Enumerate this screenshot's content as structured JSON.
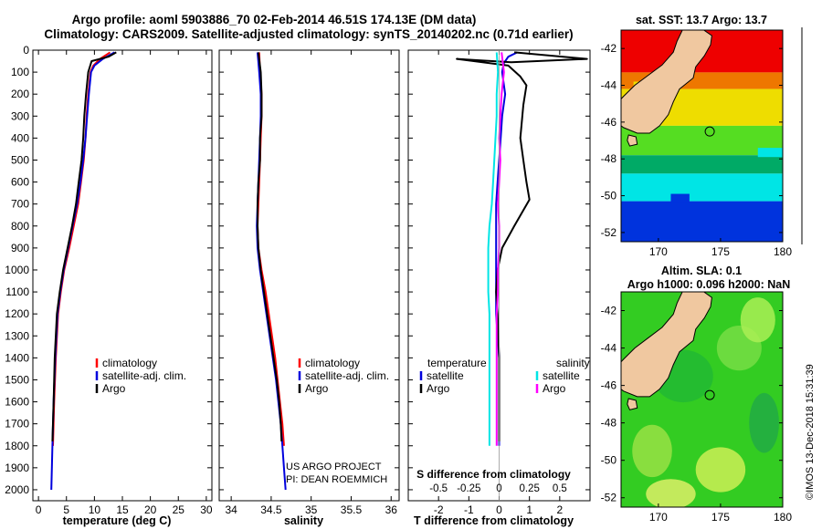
{
  "header": {
    "line1": "Argo profile: aoml 5903886_70 02-Feb-2014 46.51S 174.13E (DM data)",
    "line2": "Climatology: CARS2009. Satellite-adjusted climatology: synTS_20140202.nc (0.71d earlier)"
  },
  "credits": {
    "project": "US ARGO PROJECT",
    "pi": "PI: DEAN ROEMMICH",
    "stamp": "©IMOS 13-Dec-2018 15:31:39"
  },
  "colors": {
    "climatology": "#ff0000",
    "satellite": "#0000dd",
    "argo": "#000000",
    "s_satellite": "#00e5e5",
    "s_argo": "#ff00ff"
  },
  "chart_data": [
    {
      "type": "line",
      "id": "temperature",
      "xlabel": "temperature (deg C)",
      "xlim": [
        -1,
        31
      ],
      "xticks": [
        0,
        5,
        10,
        15,
        20,
        25,
        30
      ],
      "xtick_labels": [
        "0",
        "5",
        "10",
        "15",
        "20",
        "25",
        "30"
      ],
      "ylim": [
        2050,
        0
      ],
      "yticks": [
        0,
        100,
        200,
        300,
        400,
        500,
        600,
        700,
        800,
        900,
        1000,
        1100,
        1200,
        1300,
        1400,
        1500,
        1600,
        1700,
        1800,
        1900,
        2000
      ],
      "legend": [
        "climatology",
        "satellite-adj. clim.",
        "Argo"
      ],
      "series": [
        {
          "name": "climatology",
          "color": "#ff0000",
          "points": [
            [
              12.8,
              10
            ],
            [
              11,
              40
            ],
            [
              9.8,
              70
            ],
            [
              9.3,
              100
            ],
            [
              8.9,
              200
            ],
            [
              8.6,
              300
            ],
            [
              8.4,
              400
            ],
            [
              8.1,
              500
            ],
            [
              7.6,
              600
            ],
            [
              7.1,
              700
            ],
            [
              6.3,
              800
            ],
            [
              5.5,
              900
            ],
            [
              4.6,
              1000
            ],
            [
              4.0,
              1100
            ],
            [
              3.5,
              1200
            ],
            [
              3.1,
              1400
            ],
            [
              2.8,
              1600
            ],
            [
              2.6,
              1800
            ]
          ]
        },
        {
          "name": "satellite-adj. clim.",
          "color": "#0000dd",
          "points": [
            [
              13.6,
              10
            ],
            [
              11.5,
              40
            ],
            [
              10,
              70
            ],
            [
              9.4,
              100
            ],
            [
              9.0,
              200
            ],
            [
              8.7,
              300
            ],
            [
              8.4,
              400
            ],
            [
              8.0,
              500
            ],
            [
              7.5,
              600
            ],
            [
              6.9,
              700
            ],
            [
              6.1,
              800
            ],
            [
              5.3,
              900
            ],
            [
              4.5,
              1000
            ],
            [
              3.9,
              1100
            ],
            [
              3.4,
              1200
            ],
            [
              3.0,
              1400
            ],
            [
              2.7,
              1600
            ],
            [
              2.5,
              1800
            ],
            [
              2.3,
              2000
            ]
          ]
        },
        {
          "name": "Argo",
          "color": "#000000",
          "points": [
            [
              13.9,
              10
            ],
            [
              12.5,
              30
            ],
            [
              9.5,
              50
            ],
            [
              8.9,
              100
            ],
            [
              8.5,
              200
            ],
            [
              8.2,
              300
            ],
            [
              8.0,
              400
            ],
            [
              7.7,
              500
            ],
            [
              7.2,
              600
            ],
            [
              6.7,
              700
            ],
            [
              6.0,
              800
            ],
            [
              5.2,
              900
            ],
            [
              4.4,
              1000
            ],
            [
              3.8,
              1100
            ],
            [
              3.3,
              1200
            ],
            [
              2.9,
              1400
            ],
            [
              2.7,
              1600
            ],
            [
              2.5,
              1780
            ]
          ]
        }
      ]
    },
    {
      "type": "line",
      "id": "salinity",
      "xlabel": "salinity",
      "xlim": [
        33.85,
        36.1
      ],
      "xticks": [
        34,
        34.5,
        35,
        35.5,
        36
      ],
      "xtick_labels": [
        "34",
        "34.5",
        "35",
        "35.5",
        "36"
      ],
      "ylim": [
        2050,
        0
      ],
      "legend": [
        "climatology",
        "satellite-adj. clim.",
        "Argo"
      ],
      "series": [
        {
          "name": "climatology",
          "color": "#ff0000",
          "points": [
            [
              34.35,
              10
            ],
            [
              34.36,
              100
            ],
            [
              34.38,
              200
            ],
            [
              34.38,
              300
            ],
            [
              34.37,
              400
            ],
            [
              34.36,
              500
            ],
            [
              34.35,
              600
            ],
            [
              34.34,
              700
            ],
            [
              34.33,
              800
            ],
            [
              34.34,
              900
            ],
            [
              34.38,
              1000
            ],
            [
              34.43,
              1100
            ],
            [
              34.47,
              1200
            ],
            [
              34.51,
              1300
            ],
            [
              34.55,
              1400
            ],
            [
              34.58,
              1500
            ],
            [
              34.61,
              1600
            ],
            [
              34.64,
              1700
            ],
            [
              34.66,
              1800
            ]
          ]
        },
        {
          "name": "satellite-adj. clim.",
          "color": "#0000dd",
          "points": [
            [
              34.33,
              10
            ],
            [
              34.35,
              100
            ],
            [
              34.37,
              200
            ],
            [
              34.37,
              300
            ],
            [
              34.36,
              400
            ],
            [
              34.35,
              500
            ],
            [
              34.34,
              600
            ],
            [
              34.33,
              700
            ],
            [
              34.32,
              800
            ],
            [
              34.33,
              900
            ],
            [
              34.36,
              1000
            ],
            [
              34.4,
              1100
            ],
            [
              34.44,
              1200
            ],
            [
              34.48,
              1300
            ],
            [
              34.52,
              1400
            ],
            [
              34.56,
              1500
            ],
            [
              34.59,
              1600
            ],
            [
              34.62,
              1700
            ],
            [
              34.64,
              1800
            ],
            [
              34.66,
              1900
            ],
            [
              34.68,
              2000
            ]
          ]
        },
        {
          "name": "Argo",
          "color": "#000000",
          "points": [
            [
              34.34,
              10
            ],
            [
              34.37,
              100
            ],
            [
              34.38,
              200
            ],
            [
              34.38,
              300
            ],
            [
              34.36,
              400
            ],
            [
              34.36,
              500
            ],
            [
              34.34,
              600
            ],
            [
              34.33,
              700
            ],
            [
              34.33,
              800
            ],
            [
              34.34,
              900
            ],
            [
              34.37,
              1000
            ],
            [
              34.41,
              1100
            ],
            [
              34.45,
              1200
            ],
            [
              34.49,
              1300
            ],
            [
              34.53,
              1400
            ],
            [
              34.57,
              1500
            ],
            [
              34.6,
              1600
            ],
            [
              34.62,
              1700
            ],
            [
              34.63,
              1780
            ]
          ]
        }
      ]
    },
    {
      "type": "line",
      "id": "difference",
      "xlabel": "T difference from climatology",
      "xlim": [
        -3,
        3
      ],
      "xticks": [
        -2,
        -1,
        0,
        1,
        2
      ],
      "xtick_labels": [
        "-2",
        "-1",
        "0",
        "1",
        "2"
      ],
      "s_xlabel": "S difference from climatology",
      "s_xticks": [
        -0.5,
        -0.25,
        0,
        0.25,
        0.5
      ],
      "s_xtick_labels": [
        "-0.5",
        "-0.25",
        "0",
        "0.25",
        "0.5"
      ],
      "s_xlim": [
        -0.75,
        0.75
      ],
      "ylim": [
        2050,
        0
      ],
      "legend_t": {
        "title": "temperature",
        "items": [
          "satellite",
          "Argo"
        ]
      },
      "legend_s": {
        "title": "salinity",
        "items": [
          "satellite",
          "Argo"
        ]
      },
      "series": [
        {
          "name": "T satellite",
          "color": "#0000dd",
          "points": [
            [
              0.6,
              10
            ],
            [
              0.3,
              30
            ],
            [
              0.15,
              60
            ],
            [
              0.1,
              100
            ],
            [
              0.2,
              200
            ],
            [
              0.1,
              300
            ],
            [
              0.05,
              400
            ],
            [
              0,
              500
            ],
            [
              -0.05,
              600
            ],
            [
              -0.1,
              700
            ],
            [
              -0.1,
              800
            ],
            [
              -0.1,
              900
            ],
            [
              -0.1,
              1000
            ],
            [
              -0.1,
              1100
            ],
            [
              -0.1,
              1200
            ],
            [
              -0.05,
              1300
            ],
            [
              0,
              1400
            ],
            [
              0,
              1500
            ],
            [
              0,
              1600
            ],
            [
              0,
              1700
            ],
            [
              0,
              1800
            ]
          ]
        },
        {
          "name": "T Argo",
          "color": "#000000",
          "points": [
            [
              0.5,
              10
            ],
            [
              2.9,
              40
            ],
            [
              0.4,
              55
            ],
            [
              -1.4,
              40
            ],
            [
              0.3,
              70
            ],
            [
              0.7,
              120
            ],
            [
              0.9,
              160
            ],
            [
              0.8,
              250
            ],
            [
              0.7,
              400
            ],
            [
              0.8,
              500
            ],
            [
              0.9,
              600
            ],
            [
              1.0,
              680
            ],
            [
              0.5,
              800
            ],
            [
              0.1,
              900
            ],
            [
              -0.05,
              1000
            ],
            [
              -0.1,
              1100
            ],
            [
              -0.05,
              1200
            ],
            [
              0,
              1400
            ],
            [
              0,
              1600
            ],
            [
              0,
              1780
            ]
          ]
        },
        {
          "name": "S satellite",
          "color": "#00e5e5",
          "points": [
            [
              -0.02,
              10
            ],
            [
              -0.01,
              100
            ],
            [
              -0.02,
              200
            ],
            [
              -0.02,
              300
            ],
            [
              -0.03,
              400
            ],
            [
              -0.04,
              500
            ],
            [
              -0.05,
              600
            ],
            [
              -0.06,
              700
            ],
            [
              -0.08,
              800
            ],
            [
              -0.09,
              900
            ],
            [
              -0.09,
              1000
            ],
            [
              -0.09,
              1100
            ],
            [
              -0.08,
              1200
            ],
            [
              -0.08,
              1300
            ],
            [
              -0.08,
              1400
            ],
            [
              -0.08,
              1500
            ],
            [
              -0.08,
              1600
            ],
            [
              -0.08,
              1700
            ],
            [
              -0.08,
              1800
            ]
          ]
        },
        {
          "name": "S Argo",
          "color": "#ff00ff",
          "points": [
            [
              0.02,
              10
            ],
            [
              0.04,
              100
            ],
            [
              0.02,
              200
            ],
            [
              0.01,
              300
            ],
            [
              0,
              400
            ],
            [
              0.01,
              500
            ],
            [
              0.0,
              600
            ],
            [
              -0.01,
              700
            ],
            [
              0.0,
              800
            ],
            [
              0.0,
              900
            ],
            [
              -0.01,
              1000
            ],
            [
              -0.01,
              1100
            ],
            [
              -0.02,
              1200
            ],
            [
              -0.02,
              1300
            ],
            [
              -0.02,
              1400
            ],
            [
              -0.02,
              1500
            ],
            [
              -0.02,
              1600
            ],
            [
              -0.02,
              1700
            ],
            [
              -0.02,
              1800
            ]
          ]
        }
      ]
    },
    {
      "type": "heatmap",
      "id": "sst-map",
      "title": "sat. SST: 13.7 Argo: 13.7",
      "lon_range": [
        167,
        180
      ],
      "lat_range": [
        -52.5,
        -41
      ],
      "xticks": [
        170,
        175,
        180
      ],
      "yticks": [
        -42,
        -44,
        -46,
        -48,
        -50,
        -52
      ],
      "profile_location": [
        174.13,
        -46.51
      ]
    },
    {
      "type": "heatmap",
      "id": "sla-map",
      "title": "Altim. SLA: 0.1",
      "subtitle": "Argo h1000: 0.096 h2000: NaN",
      "lon_range": [
        167,
        180
      ],
      "lat_range": [
        -52.5,
        -41
      ],
      "xticks": [
        170,
        175,
        180
      ],
      "yticks": [
        -42,
        -44,
        -46,
        -48,
        -50,
        -52
      ],
      "profile_location": [
        174.13,
        -46.51
      ]
    }
  ]
}
